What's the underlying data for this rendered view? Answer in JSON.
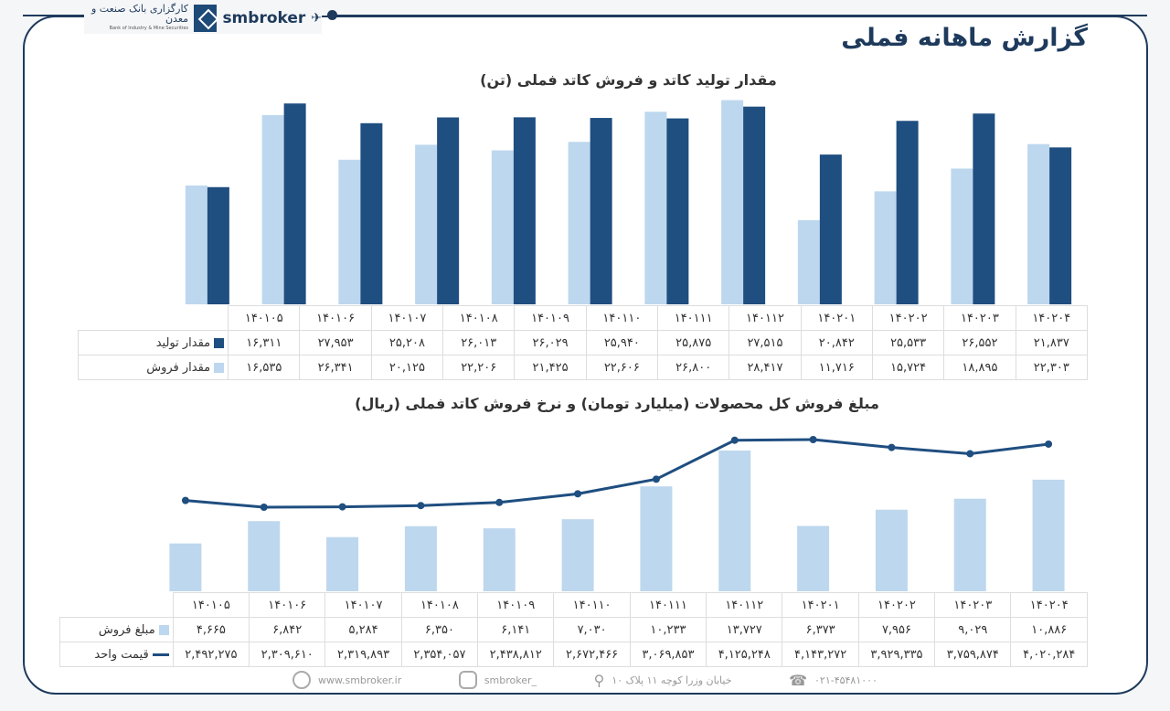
{
  "header": {
    "bank_name": "کارگزاری بانک صنعت و معدن",
    "bank_name_en": "Bank of Industry & Mine Securities",
    "brand": "smbroker",
    "title": "گزارش ماهانه فملی"
  },
  "colors": {
    "dark": "#1f4e80",
    "light": "#bdd7ee",
    "frame": "#1e3a5c"
  },
  "chart_data": [
    {
      "type": "bar",
      "title": "مقدار تولید کاتد و فروش کاتد فملی (تن)",
      "categories": [
        "۱۴۰۱۰۵",
        "۱۴۰۱۰۶",
        "۱۴۰۱۰۷",
        "۱۴۰۱۰۸",
        "۱۴۰۱۰۹",
        "۱۴۰۱۱۰",
        "۱۴۰۱۱۱",
        "۱۴۰۱۱۲",
        "۱۴۰۲۰۱",
        "۱۴۰۲۰۲",
        "۱۴۰۲۰۳",
        "۱۴۰۲۰۴"
      ],
      "series": [
        {
          "name": "مقدار تولید",
          "color": "#1f4e80",
          "values": [
            16311,
            27953,
            25208,
            26013,
            26029,
            25940,
            25875,
            27515,
            20842,
            25533,
            26552,
            21837
          ]
        },
        {
          "name": "مقدار فروش",
          "color": "#bdd7ee",
          "values": [
            16535,
            26341,
            20125,
            22206,
            21425,
            22606,
            26800,
            28417,
            11716,
            15724,
            18895,
            22303
          ]
        }
      ],
      "legend": "data-table",
      "grid": false
    },
    {
      "type": "bar+line",
      "title": "مبلغ فروش کل محصولات (میلیارد تومان) و نرخ فروش کاتد فملی (ریال)",
      "categories": [
        "۱۴۰۱۰۵",
        "۱۴۰۱۰۶",
        "۱۴۰۱۰۷",
        "۱۴۰۱۰۸",
        "۱۴۰۱۰۹",
        "۱۴۰۱۱۰",
        "۱۴۰۱۱۱",
        "۱۴۰۱۱۲",
        "۱۴۰۲۰۱",
        "۱۴۰۲۰۲",
        "۱۴۰۲۰۳",
        "۱۴۰۲۰۴"
      ],
      "series": [
        {
          "name": "مبلغ فروش",
          "type": "bar",
          "color": "#bdd7ee",
          "values": [
            4665,
            6842,
            5284,
            6350,
            6141,
            7030,
            10233,
            13727,
            6373,
            7956,
            9029,
            10886
          ]
        },
        {
          "name": "قیمت واحد",
          "type": "line",
          "color": "#1f4e80",
          "values": [
            2492275,
            2309610,
            2319893,
            2354057,
            2438812,
            2672466,
            3069853,
            4125248,
            4143272,
            3929335,
            3759874,
            4020284
          ]
        }
      ],
      "legend": "data-table",
      "grid": false
    }
  ],
  "footer": {
    "website": "www.smbroker.ir",
    "instagram": "smbroker_",
    "address": "خیابان وزرا کوچه ۱۱ پلاک ۱۰",
    "phone": "۰۲۱-۴۵۴۸۱۰۰۰"
  }
}
